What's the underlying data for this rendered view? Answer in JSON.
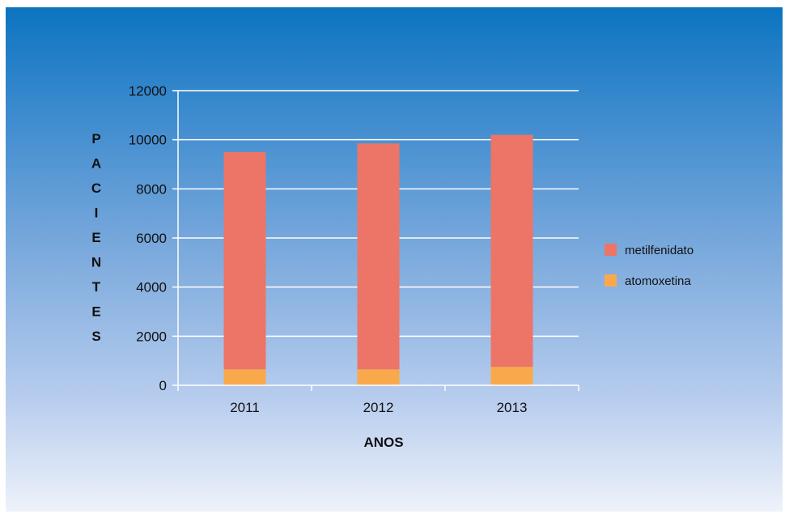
{
  "chart_data": {
    "type": "bar",
    "stacked": true,
    "categories": [
      "2011",
      "2012",
      "2013"
    ],
    "series": [
      {
        "name": "atomoxetina",
        "values": [
          650,
          650,
          750
        ],
        "color": "#f9a94c"
      },
      {
        "name": "metilfenidato",
        "values": [
          8850,
          9200,
          9450
        ],
        "color": "#ec7567"
      }
    ],
    "title": "",
    "xlabel": "ANOS",
    "ylabel": "PACIENTES",
    "ylim": [
      0,
      12000
    ],
    "yticks": [
      "0",
      "2000",
      "4000",
      "6000",
      "8000",
      "10000",
      "12000"
    ],
    "grid": true,
    "legend": {
      "position": "right",
      "order": [
        "metilfenidato",
        "atomoxetina"
      ]
    }
  }
}
